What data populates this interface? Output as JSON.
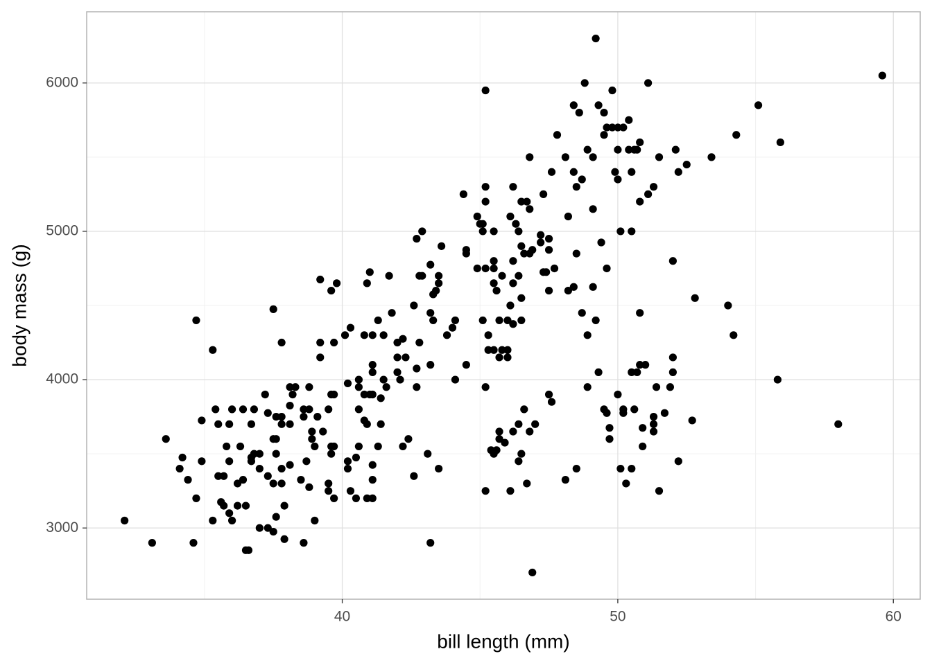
{
  "chart_data": {
    "type": "scatter",
    "x_label": "bill length (mm)",
    "y_label": "body mass (g)",
    "xlim": [
      30.725,
      60.975
    ],
    "ylim": [
      2520,
      6480
    ],
    "xticks": [
      40,
      50,
      60
    ],
    "yticks": [
      3000,
      4000,
      5000,
      6000
    ],
    "grid": true,
    "color": "#000000",
    "x": [
      49.2,
      59.6,
      45.2,
      48.8,
      51.1,
      49.8,
      55.1,
      48.4,
      48.6,
      49.3,
      49.5,
      50.4,
      49.6,
      49.8,
      50.0,
      50.2,
      47.8,
      49.5,
      54.3,
      55.9,
      50.8,
      48.9,
      50.0,
      50.4,
      50.6,
      50.7,
      52.1,
      48.1,
      49.1,
      51.5,
      53.4,
      46.8,
      52.5,
      49.9,
      47.6,
      48.4,
      50.5,
      52.2,
      50.0,
      48.7,
      46.2,
      45.2,
      48.5,
      51.3,
      44.4,
      47.3,
      51.1,
      45.2,
      46.5,
      46.7,
      50.8,
      46.8,
      49.1,
      44.9,
      46.1,
      48.2,
      45.0,
      45.1,
      46.3,
      42.9,
      45.1,
      45.5,
      46.4,
      50.1,
      50.5,
      47.2,
      42.7,
      47.5,
      47.2,
      49.4,
      43.6,
      46.5,
      47.5,
      44.5,
      44.5,
      46.6,
      46.8,
      46.9,
      48.5,
      45.5,
      46.2,
      52.0,
      43.2,
      44.9,
      45.2,
      45.5,
      47.7,
      49.6,
      41.0,
      47.3,
      47.4,
      42.8,
      42.9,
      43.5,
      45.8,
      46.4,
      41.7,
      39.2,
      40.9,
      39.8,
      43.5,
      45.5,
      46.2,
      39.6,
      43.4,
      45.6,
      47.5,
      48.2,
      48.4,
      49.1,
      43.3,
      46.5,
      52.8,
      46.1,
      42.6,
      54.0,
      37.5,
      41.8,
      43.2,
      48.7,
      50.8,
      46.0,
      34.7,
      41.3,
      43.3,
      44.1,
      45.1,
      45.7,
      46.5,
      49.2,
      46.2,
      44.0,
      40.3,
      43.8,
      40.1,
      40.8,
      41.1,
      41.5,
      45.3,
      48.9,
      54.2,
      42.2,
      37.8,
      39.2,
      39.7,
      42.0,
      42.8,
      35.3,
      45.3,
      45.5,
      46.0,
      45.8,
      45.7,
      46.0,
      39.2,
      42.0,
      42.3,
      52.0,
      44.5,
      43.2,
      41.1,
      50.8,
      51.0,
      42.7,
      42.0,
      41.1,
      49.3,
      50.5,
      50.7,
      52.0,
      40.6,
      44.1,
      41.5,
      55.8,
      42.1,
      40.2,
      41.6,
      38.1,
      38.3,
      38.8,
      40.6,
      42.7,
      45.2,
      48.9,
      51.4,
      51.9,
      37.2,
      38.2,
      39.6,
      39.7,
      40.8,
      41.0,
      41.1,
      47.5,
      50.0,
      41.4,
      47.6,
      38.1,
      35.4,
      36.0,
      36.4,
      36.8,
      38.6,
      38.8,
      39.5,
      40.6,
      46.6,
      49.5,
      50.2,
      50.6,
      37.3,
      49.6,
      50.2,
      51.7,
      37.6,
      37.8,
      38.6,
      39.1,
      51.3,
      40.8,
      34.9,
      52.7,
      35.5,
      35.9,
      36.7,
      37.8,
      38.1,
      40.9,
      41.4,
      46.4,
      47.0,
      51.3,
      58.0,
      49.7,
      50.9,
      38.9,
      39.3,
      45.7,
      46.2,
      46.8,
      51.3,
      33.6,
      37.5,
      37.6,
      38.9,
      42.4,
      45.7,
      49.7,
      45.9,
      35.8,
      36.3,
      39.0,
      39.6,
      39.7,
      40.6,
      41.3,
      42.2,
      50.9,
      45.4,
      45.6,
      45.5,
      34.2,
      36.8,
      37.0,
      37.6,
      39.6,
      43.1,
      46.5,
      36.7,
      40.5,
      34.9,
      35.9,
      36.7,
      38.7,
      40.2,
      46.4,
      52.2,
      38.1,
      41.1,
      34.1,
      37.0,
      37.8,
      40.2,
      43.5,
      48.5,
      50.1,
      50.5,
      35.5,
      35.7,
      37.3,
      42.6,
      34.4,
      36.4,
      38.5,
      41.1,
      48.1,
      36.2,
      37.5,
      37.8,
      39.5,
      46.7,
      50.3,
      38.8,
      39.5,
      40.3,
      45.2,
      46.1,
      51.5,
      34.7,
      39.7,
      40.5,
      40.9,
      41.1,
      35.6,
      35.7,
      36.2,
      36.5,
      37.9,
      35.9,
      37.6,
      32.1,
      35.3,
      36.0,
      39.0,
      37.0,
      37.3,
      37.5,
      37.9,
      33.1,
      34.6,
      38.6,
      43.2,
      36.5,
      36.6,
      46.9
    ],
    "values": [
      6300,
      6050,
      5950,
      6000,
      6000,
      5950,
      5850,
      5850,
      5800,
      5850,
      5800,
      5750,
      5700,
      5700,
      5700,
      5700,
      5650,
      5650,
      5650,
      5600,
      5600,
      5550,
      5550,
      5550,
      5550,
      5550,
      5550,
      5500,
      5500,
      5500,
      5500,
      5500,
      5450,
      5400,
      5400,
      5400,
      5400,
      5400,
      5350,
      5350,
      5300,
      5300,
      5300,
      5300,
      5250,
      5250,
      5250,
      5200,
      5200,
      5200,
      5200,
      5150,
      5150,
      5100,
      5100,
      5100,
      5050,
      5050,
      5050,
      5000,
      5000,
      5000,
      5000,
      5000,
      5000,
      4975,
      4950,
      4950,
      4925,
      4925,
      4900,
      4900,
      4875,
      4875,
      4850,
      4850,
      4850,
      4875,
      4850,
      4800,
      4800,
      4800,
      4775,
      4750,
      4750,
      4750,
      4750,
      4750,
      4725,
      4725,
      4725,
      4700,
      4700,
      4700,
      4700,
      4700,
      4700,
      4675,
      4650,
      4650,
      4650,
      4650,
      4650,
      4600,
      4600,
      4600,
      4600,
      4600,
      4625,
      4625,
      4575,
      4550,
      4550,
      4500,
      4500,
      4500,
      4475,
      4450,
      4450,
      4450,
      4450,
      4400,
      4400,
      4400,
      4400,
      4400,
      4400,
      4400,
      4400,
      4400,
      4375,
      4350,
      4350,
      4300,
      4300,
      4300,
      4300,
      4300,
      4300,
      4300,
      4300,
      4275,
      4250,
      4250,
      4250,
      4250,
      4250,
      4200,
      4200,
      4200,
      4200,
      4200,
      4150,
      4150,
      4150,
      4150,
      4150,
      4150,
      4100,
      4100,
      4100,
      4100,
      4100,
      4075,
      4050,
      4050,
      4050,
      4050,
      4050,
      4050,
      4000,
      4000,
      4000,
      4000,
      4000,
      3975,
      3950,
      3950,
      3950,
      3950,
      3950,
      3950,
      3950,
      3950,
      3950,
      3950,
      3900,
      3900,
      3900,
      3900,
      3900,
      3900,
      3900,
      3900,
      3900,
      3875,
      3850,
      3825,
      3800,
      3800,
      3800,
      3800,
      3800,
      3800,
      3800,
      3800,
      3800,
      3800,
      3800,
      3800,
      3775,
      3775,
      3775,
      3775,
      3750,
      3750,
      3750,
      3750,
      3750,
      3725,
      3725,
      3725,
      3700,
      3700,
      3700,
      3700,
      3700,
      3700,
      3700,
      3700,
      3700,
      3700,
      3700,
      3675,
      3675,
      3650,
      3650,
      3650,
      3650,
      3650,
      3650,
      3600,
      3600,
      3600,
      3600,
      3600,
      3600,
      3600,
      3575,
      3550,
      3550,
      3550,
      3550,
      3550,
      3550,
      3550,
      3550,
      3550,
      3525,
      3525,
      3500,
      3475,
      3500,
      3500,
      3500,
      3500,
      3500,
      3500,
      3475,
      3475,
      3450,
      3450,
      3450,
      3450,
      3450,
      3450,
      3450,
      3425,
      3425,
      3400,
      3400,
      3400,
      3400,
      3400,
      3400,
      3400,
      3400,
      3350,
      3350,
      3350,
      3350,
      3325,
      3325,
      3325,
      3325,
      3325,
      3300,
      3300,
      3300,
      3300,
      3300,
      3300,
      3275,
      3250,
      3250,
      3250,
      3250,
      3250,
      3200,
      3200,
      3200,
      3200,
      3200,
      3175,
      3150,
      3150,
      3150,
      3150,
      3100,
      3075,
      3050,
      3050,
      3050,
      3050,
      3000,
      3000,
      2975,
      2925,
      2900,
      2900,
      2900,
      2900,
      2850,
      2850,
      2700
    ]
  }
}
